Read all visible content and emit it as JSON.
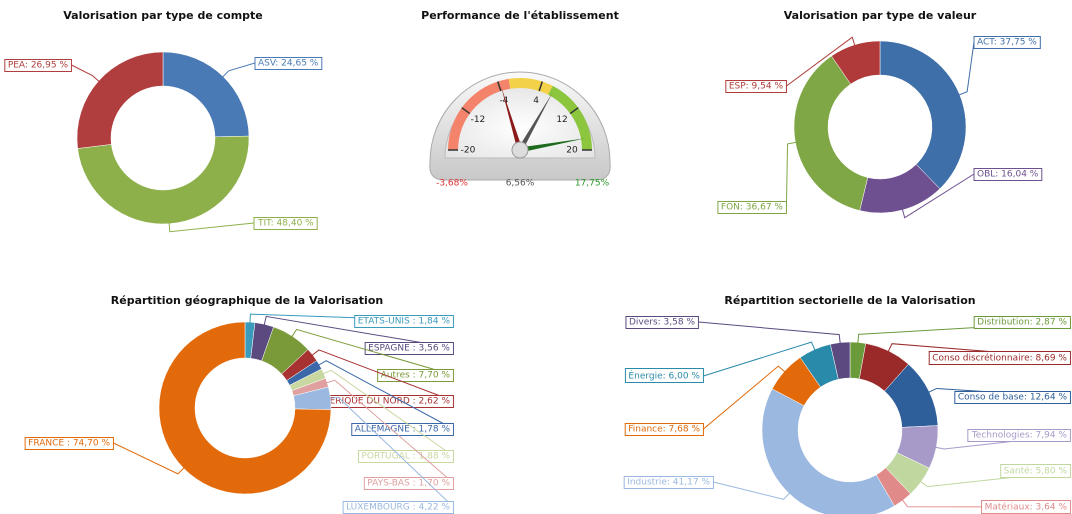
{
  "chart_data": [
    {
      "type": "donut",
      "title": "Valorisation par type de compte",
      "values": [
        24.65,
        48.4,
        26.95
      ],
      "value_labels": [
        "ASV: 24,65 %",
        "TIT: 48,40 %",
        "PEA: 26,95 %"
      ],
      "colors": [
        "#4a7ab5",
        "#8db04a",
        "#b13e3e"
      ]
    },
    {
      "type": "gauge",
      "title": "Performance de l'établissement",
      "ylim": [
        -20,
        20
      ],
      "yticks": [
        -20,
        -12,
        -4,
        4,
        12,
        20
      ],
      "bands": [
        {
          "from": -20,
          "to": -2,
          "color": "#f4836b"
        },
        {
          "from": -2,
          "to": 6,
          "color": "#f3d24a"
        },
        {
          "from": 6,
          "to": 20,
          "color": "#8cc63f"
        }
      ],
      "values": [
        -3.68,
        6.56,
        17.75
      ],
      "value_labels": [
        "-3,68%",
        "6,56%",
        "17,75%"
      ],
      "colors": [
        "#8b1a1a",
        "#555555",
        "#1e6b1e"
      ],
      "label_colors": [
        "#e03030",
        "#555555",
        "#2a9a2a"
      ]
    },
    {
      "type": "donut",
      "title": "Valorisation par type de valeur",
      "values": [
        37.75,
        16.04,
        36.67,
        9.54
      ],
      "value_labels": [
        "ACT: 37,75 %",
        "OBL: 16,04 %",
        "FON: 36,67 %",
        "ESP: 9,54 %"
      ],
      "colors": [
        "#3f6fa8",
        "#6e4f8f",
        "#7fa745",
        "#b03a3a"
      ]
    },
    {
      "type": "donut",
      "title": "Répartition géographique de la Valorisation",
      "values": [
        1.84,
        3.56,
        7.7,
        2.62,
        1.78,
        1.88,
        1.7,
        4.22,
        74.7
      ],
      "value_labels": [
        "ETATS-UNIS : 1,84 %",
        "ESPAGNE : 3,56 %",
        "Autres : 7,70 %",
        "AMERIQUE DU NORD : 2,62 %",
        "ALLEMAGNE : 1,78 %",
        "PORTUGAL : 1,88 %",
        "PAYS-BAS : 1,70 %",
        "LUXEMBOURG : 4,22 %",
        "FRANCE : 74,70 %"
      ],
      "colors": [
        "#3a9bbd",
        "#5a4a80",
        "#7a9a3a",
        "#a83232",
        "#3a68a8",
        "#c8d8a0",
        "#e0a0a0",
        "#9ab8e0",
        "#e26a0a"
      ]
    },
    {
      "type": "donut",
      "title": "Répartition sectorielle de la Valorisation",
      "values": [
        2.87,
        8.69,
        12.64,
        7.94,
        5.8,
        3.64,
        41.17,
        7.68,
        6.0,
        3.58
      ],
      "value_labels": [
        "Distribution: 2,87 %",
        "Conso discrétionnaire: 8,69 %",
        "Conso de base: 12,64 %",
        "Technologies: 7,94 %",
        "Santé: 5,80 %",
        "Matériaux: 3,64 %",
        "Industrie: 41,17 %",
        "Finance: 7,68 %",
        "Énergie: 6,00 %",
        "Divers: 3,58 %"
      ],
      "colors": [
        "#6a9a3a",
        "#9a2a2a",
        "#2e5f9a",
        "#a89ac8",
        "#c0d8a0",
        "#e08a8a",
        "#9ab8e0",
        "#e26a0a",
        "#2a8aaa",
        "#5a4a80"
      ]
    }
  ]
}
